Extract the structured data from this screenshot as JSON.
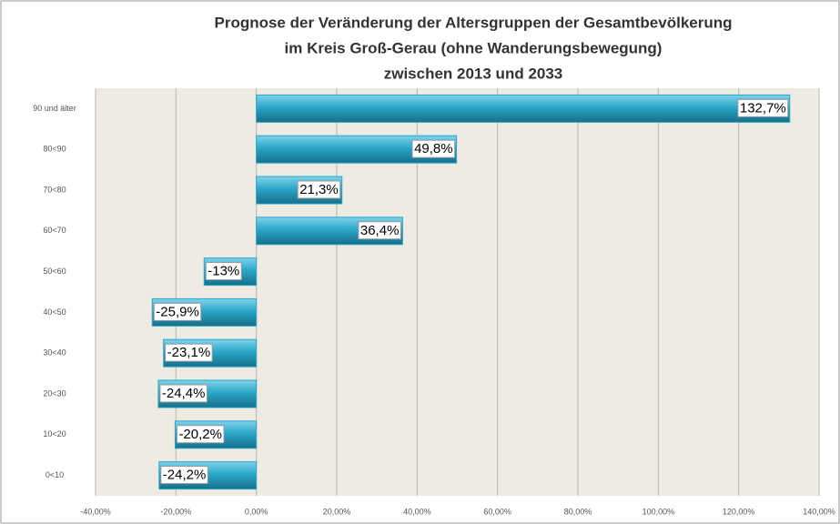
{
  "chart_data": {
    "type": "bar",
    "orientation": "horizontal",
    "title": [
      "Prognose der Veränderung der Altersgruppen der Gesamtbevölkerung",
      "im Kreis Groß-Gerau (ohne Wanderungsbewegung)",
      "zwischen 2013 und 2033"
    ],
    "categories": [
      "90 und älter",
      "80<90",
      "70<80",
      "60<70",
      "50<60",
      "40<50",
      "30<40",
      "20<30",
      "10<20",
      "0<10"
    ],
    "values": [
      132.7,
      49.8,
      21.3,
      36.4,
      -13,
      -25.9,
      -23.1,
      -24.4,
      -20.2,
      -24.2
    ],
    "value_labels": [
      "132,7%",
      "49,8%",
      "21,3%",
      "36,4%",
      "-13%",
      "-25,9%",
      "-23,1%",
      "-24,4%",
      "-20,2%",
      "-24,2%"
    ],
    "color": "#2ba6c8",
    "xlim": [
      -40,
      140
    ],
    "xticks": [
      {
        "value": -40,
        "label": "-40,00%"
      },
      {
        "value": -20,
        "label": "-20,00%"
      },
      {
        "value": 0,
        "label": "0,00%"
      },
      {
        "value": 20,
        "label": "20,00%"
      },
      {
        "value": 40,
        "label": "40,00%"
      },
      {
        "value": 60,
        "label": "60,00%"
      },
      {
        "value": 80,
        "label": "80,00%"
      },
      {
        "value": 100,
        "label": "100,00%"
      },
      {
        "value": 120,
        "label": "120,00%"
      },
      {
        "value": 140,
        "label": "140,00%"
      }
    ],
    "grid": true
  }
}
